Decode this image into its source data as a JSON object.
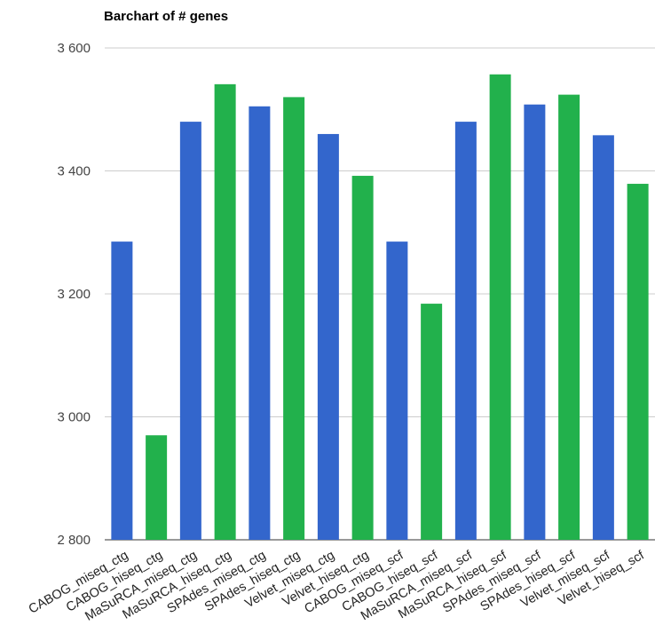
{
  "chart_data": {
    "type": "bar",
    "title": "Barchart of # genes",
    "xlabel": "",
    "ylabel": "",
    "ylim": [
      2800,
      3600
    ],
    "yticks": [
      2800,
      3000,
      3200,
      3400,
      3600
    ],
    "ytick_labels": [
      "2 800",
      "3 000",
      "3 200",
      "3 400",
      "3 600"
    ],
    "grid": true,
    "legend": "none",
    "categories": [
      "CABOG_miseq_ctg",
      "CABOG_hiseq_ctg",
      "MaSuRCA_miseq_ctg",
      "MaSuRCA_hiseq_ctg",
      "SPAdes_miseq_ctg",
      "SPAdes_hiseq_ctg",
      "Velvet_miseq_ctg",
      "Velvet_hiseq_ctg",
      "CABOG_miseq_scf",
      "CABOG_hiseq_scf",
      "MaSuRCA_miseq_scf",
      "MaSuRCA_hiseq_scf",
      "SPAdes_miseq_scf",
      "SPAdes_hiseq_scf",
      "Velvet_miseq_scf",
      "Velvet_hiseq_scf"
    ],
    "values": [
      3285,
      2970,
      3480,
      3541,
      3505,
      3520,
      3460,
      3392,
      3285,
      3184,
      3480,
      3557,
      3508,
      3524,
      3458,
      3379
    ],
    "colors": [
      "#3366cc",
      "#22b14c",
      "#3366cc",
      "#22b14c",
      "#3366cc",
      "#22b14c",
      "#3366cc",
      "#22b14c",
      "#3366cc",
      "#22b14c",
      "#3366cc",
      "#22b14c",
      "#3366cc",
      "#22b14c",
      "#3366cc",
      "#22b14c"
    ]
  }
}
